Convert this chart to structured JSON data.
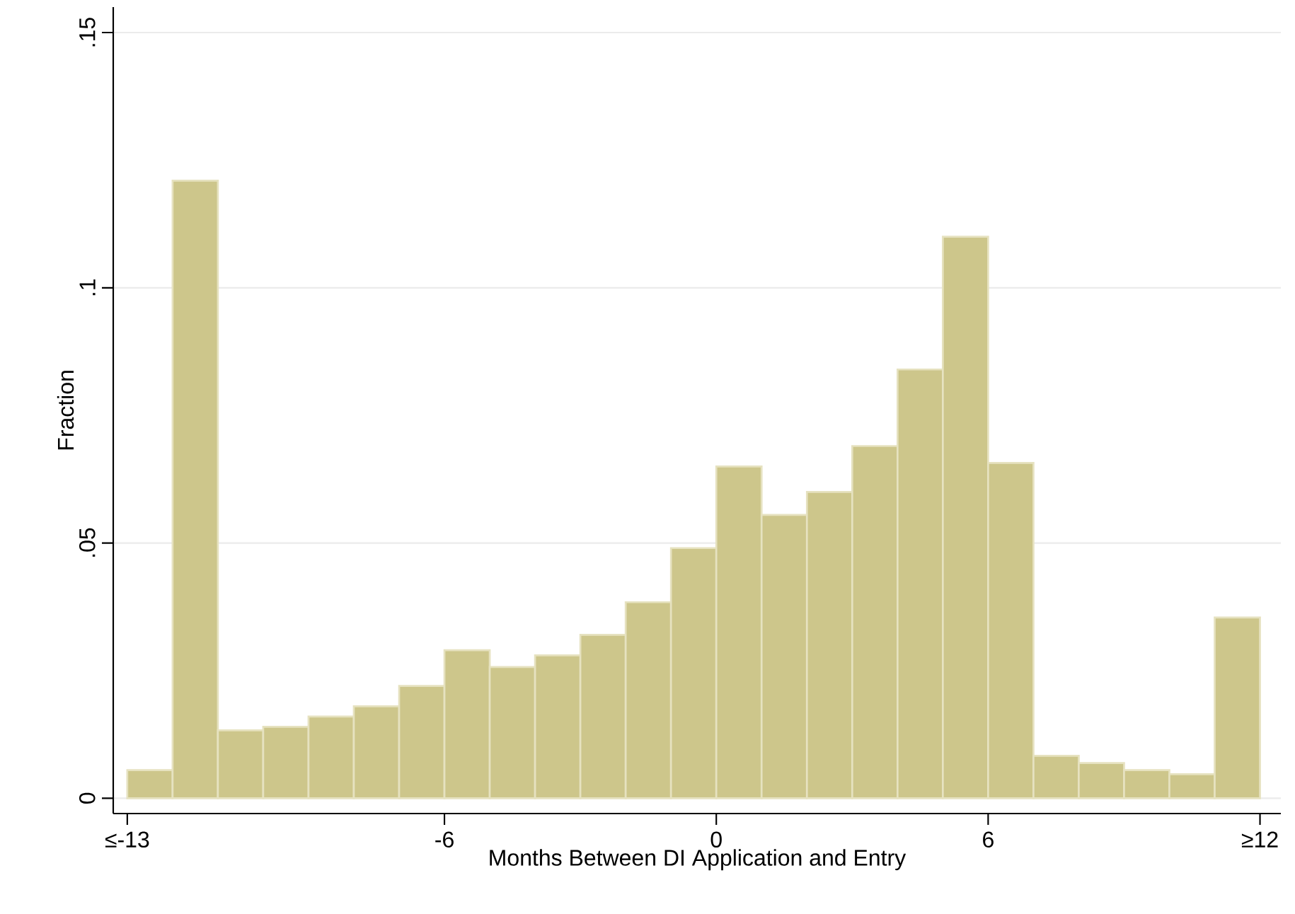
{
  "chart_data": {
    "type": "histogram",
    "xlabel": "Months Between DI Application and Entry",
    "ylabel": "Fraction",
    "bins": [
      -13,
      -12,
      -11,
      -10,
      -9,
      -8,
      -7,
      -6,
      -5,
      -4,
      -3,
      -2,
      -1,
      0,
      1,
      2,
      3,
      4,
      5,
      6,
      7,
      8,
      9,
      10,
      11,
      12
    ],
    "values": [
      0.0055,
      0.121,
      0.0133,
      0.014,
      0.016,
      0.018,
      0.022,
      0.029,
      0.0257,
      0.028,
      0.032,
      0.0384,
      0.049,
      0.065,
      0.0555,
      0.06,
      0.069,
      0.084,
      0.11,
      0.0657,
      0.0083,
      0.0069,
      0.0055,
      0.0047,
      0.0354
    ],
    "color": "#cdc68b",
    "xlim": [
      -13.31,
      12.46
    ],
    "ylim": [
      -0.003,
      0.155
    ],
    "xticks": [
      {
        "value": -13,
        "label": "≤-13"
      },
      -6,
      0,
      6,
      {
        "value": 12,
        "label": "≥12"
      }
    ],
    "yticks": [
      0,
      {
        "value": 0.05,
        "label": ".05"
      },
      {
        "value": 0.1,
        "label": ".1"
      },
      {
        "value": 0.15,
        "label": ".15"
      }
    ],
    "grid": "y"
  }
}
